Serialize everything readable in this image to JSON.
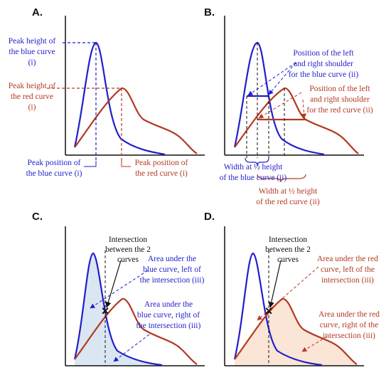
{
  "colors": {
    "blue": "#1f1fcc",
    "red": "#b33a22",
    "blue_fill": "#dbe6f3",
    "red_fill": "#fbe5d6",
    "black": "#111111"
  },
  "panels": {
    "A": {
      "label": "A.",
      "peak_height_blue": [
        "Peak height of",
        "the blue curve",
        "(i)"
      ],
      "peak_height_red": [
        "Peak height of",
        "the red curve",
        "(i)"
      ],
      "peak_position_blue": [
        "Peak position of",
        "the blue curve (i)"
      ],
      "peak_position_red": [
        "Peak position of",
        "the red curve (i)"
      ]
    },
    "B": {
      "label": "B.",
      "shoulder_blue": [
        "Position of the left",
        "and right shoulder",
        "for the blue curve (ii)"
      ],
      "shoulder_red": [
        "Position of the left",
        "and right shoulder",
        "for the red curve (ii)"
      ],
      "width_blue": [
        "Width at ½ height",
        "of the blue curve (ii)"
      ],
      "width_red": [
        "Width at ½ height",
        "of the red curve (ii)"
      ]
    },
    "C": {
      "label": "C.",
      "intersection": [
        "Intersection",
        "between the 2",
        "curves"
      ],
      "area_left": [
        "Area under the",
        "blue curve, left of",
        "the intersection (iii)"
      ],
      "area_right": [
        "Area under the",
        "blue curve, right of",
        "the intersection (iii)"
      ]
    },
    "D": {
      "label": "D.",
      "intersection": [
        "Intersection",
        "between the 2",
        "curves"
      ],
      "area_left": [
        "Area under the red",
        "curve, left of the",
        "intersection (iii)"
      ],
      "area_right": [
        "Area under the red",
        "curve, right of the",
        "intersection (iii)"
      ]
    }
  }
}
